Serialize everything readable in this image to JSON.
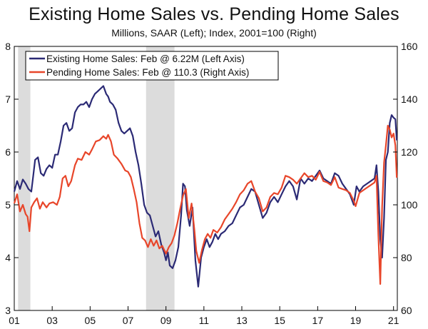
{
  "chart_data": {
    "type": "line",
    "title": "Existing Home Sales vs. Pending Home Sales",
    "subtitle": "Millions, SAAR (Left); Index, 2001=100 (Right)",
    "x_ticks": [
      "01",
      "03",
      "05",
      "07",
      "09",
      "11",
      "13",
      "15",
      "17",
      "19",
      "21"
    ],
    "x_range": [
      2001.0,
      2021.2
    ],
    "y_left": {
      "range": [
        3,
        8
      ],
      "ticks": [
        3,
        4,
        5,
        6,
        7,
        8
      ]
    },
    "y_right": {
      "range": [
        60,
        160
      ],
      "ticks": [
        60,
        80,
        100,
        120,
        140,
        160
      ]
    },
    "recessions": [
      [
        2001.2,
        2001.85
      ],
      [
        2007.95,
        2009.45
      ]
    ],
    "recession_color": "#dcdcdc",
    "grid": false,
    "legend_position": "top-left",
    "series": [
      {
        "name": "Existing Home Sales: Feb @ 6.22M (Left Axis)",
        "axis": "left",
        "color": "#2b2a75",
        "points": [
          [
            2001.0,
            5.25
          ],
          [
            2001.15,
            5.45
          ],
          [
            2001.3,
            5.3
          ],
          [
            2001.45,
            5.48
          ],
          [
            2001.6,
            5.4
          ],
          [
            2001.75,
            5.3
          ],
          [
            2001.9,
            5.25
          ],
          [
            2002.0,
            5.55
          ],
          [
            2002.1,
            5.85
          ],
          [
            2002.25,
            5.9
          ],
          [
            2002.4,
            5.6
          ],
          [
            2002.55,
            5.55
          ],
          [
            2002.7,
            5.68
          ],
          [
            2002.85,
            5.75
          ],
          [
            2003.0,
            5.7
          ],
          [
            2003.15,
            5.95
          ],
          [
            2003.3,
            5.95
          ],
          [
            2003.45,
            6.2
          ],
          [
            2003.6,
            6.5
          ],
          [
            2003.75,
            6.55
          ],
          [
            2003.9,
            6.4
          ],
          [
            2004.05,
            6.45
          ],
          [
            2004.2,
            6.75
          ],
          [
            2004.35,
            6.85
          ],
          [
            2004.5,
            6.9
          ],
          [
            2004.65,
            6.9
          ],
          [
            2004.8,
            6.95
          ],
          [
            2004.95,
            6.85
          ],
          [
            2005.1,
            7.0
          ],
          [
            2005.25,
            7.1
          ],
          [
            2005.4,
            7.15
          ],
          [
            2005.55,
            7.2
          ],
          [
            2005.7,
            7.25
          ],
          [
            2005.85,
            7.1
          ],
          [
            2005.95,
            7.05
          ],
          [
            2006.05,
            6.95
          ],
          [
            2006.2,
            6.9
          ],
          [
            2006.35,
            6.8
          ],
          [
            2006.5,
            6.55
          ],
          [
            2006.65,
            6.4
          ],
          [
            2006.8,
            6.35
          ],
          [
            2006.95,
            6.4
          ],
          [
            2007.1,
            6.45
          ],
          [
            2007.25,
            6.3
          ],
          [
            2007.4,
            6.0
          ],
          [
            2007.55,
            5.75
          ],
          [
            2007.7,
            5.4
          ],
          [
            2007.85,
            5.0
          ],
          [
            2008.0,
            4.85
          ],
          [
            2008.15,
            4.8
          ],
          [
            2008.3,
            4.6
          ],
          [
            2008.45,
            4.4
          ],
          [
            2008.6,
            4.5
          ],
          [
            2008.75,
            4.25
          ],
          [
            2008.9,
            4.1
          ],
          [
            2009.0,
            3.95
          ],
          [
            2009.1,
            4.1
          ],
          [
            2009.2,
            3.85
          ],
          [
            2009.35,
            3.8
          ],
          [
            2009.5,
            3.95
          ],
          [
            2009.65,
            4.2
          ],
          [
            2009.8,
            4.8
          ],
          [
            2009.9,
            5.4
          ],
          [
            2010.0,
            5.35
          ],
          [
            2010.1,
            4.9
          ],
          [
            2010.25,
            4.6
          ],
          [
            2010.4,
            4.95
          ],
          [
            2010.55,
            3.95
          ],
          [
            2010.7,
            3.45
          ],
          [
            2010.85,
            4.0
          ],
          [
            2011.0,
            4.2
          ],
          [
            2011.15,
            4.35
          ],
          [
            2011.3,
            4.2
          ],
          [
            2011.45,
            4.3
          ],
          [
            2011.6,
            4.45
          ],
          [
            2011.75,
            4.35
          ],
          [
            2011.9,
            4.45
          ],
          [
            2012.1,
            4.5
          ],
          [
            2012.3,
            4.6
          ],
          [
            2012.5,
            4.65
          ],
          [
            2012.7,
            4.8
          ],
          [
            2012.9,
            4.95
          ],
          [
            2013.1,
            5.0
          ],
          [
            2013.3,
            5.15
          ],
          [
            2013.5,
            5.3
          ],
          [
            2013.7,
            5.25
          ],
          [
            2013.9,
            5.0
          ],
          [
            2014.1,
            4.75
          ],
          [
            2014.3,
            4.85
          ],
          [
            2014.5,
            5.05
          ],
          [
            2014.7,
            5.15
          ],
          [
            2014.9,
            5.05
          ],
          [
            2015.1,
            5.2
          ],
          [
            2015.3,
            5.35
          ],
          [
            2015.5,
            5.45
          ],
          [
            2015.7,
            5.35
          ],
          [
            2015.9,
            5.1
          ],
          [
            2016.1,
            5.5
          ],
          [
            2016.3,
            5.4
          ],
          [
            2016.5,
            5.5
          ],
          [
            2016.7,
            5.45
          ],
          [
            2016.9,
            5.55
          ],
          [
            2017.1,
            5.65
          ],
          [
            2017.3,
            5.5
          ],
          [
            2017.5,
            5.45
          ],
          [
            2017.7,
            5.4
          ],
          [
            2017.9,
            5.6
          ],
          [
            2018.1,
            5.55
          ],
          [
            2018.3,
            5.4
          ],
          [
            2018.5,
            5.3
          ],
          [
            2018.7,
            5.2
          ],
          [
            2018.9,
            5.0
          ],
          [
            2019.05,
            5.35
          ],
          [
            2019.2,
            5.25
          ],
          [
            2019.4,
            5.35
          ],
          [
            2019.6,
            5.4
          ],
          [
            2019.8,
            5.45
          ],
          [
            2020.0,
            5.5
          ],
          [
            2020.1,
            5.75
          ],
          [
            2020.2,
            5.25
          ],
          [
            2020.3,
            4.35
          ],
          [
            2020.4,
            4.0
          ],
          [
            2020.5,
            4.75
          ],
          [
            2020.6,
            5.85
          ],
          [
            2020.7,
            6.0
          ],
          [
            2020.8,
            6.55
          ],
          [
            2020.9,
            6.7
          ],
          [
            2021.0,
            6.65
          ],
          [
            2021.1,
            6.62
          ],
          [
            2021.17,
            6.22
          ]
        ]
      },
      {
        "name": "Pending Home Sales: Feb @ 110.3 (Right Axis)",
        "axis": "right",
        "color": "#e8462a",
        "points": [
          [
            2001.0,
            100.5
          ],
          [
            2001.15,
            104.0
          ],
          [
            2001.3,
            97.5
          ],
          [
            2001.45,
            100.0
          ],
          [
            2001.6,
            96.5
          ],
          [
            2001.7,
            95.5
          ],
          [
            2001.8,
            90.0
          ],
          [
            2001.9,
            99.0
          ],
          [
            2002.05,
            101.0
          ],
          [
            2002.2,
            102.5
          ],
          [
            2002.35,
            98.5
          ],
          [
            2002.5,
            101.0
          ],
          [
            2002.7,
            99.0
          ],
          [
            2002.85,
            100.5
          ],
          [
            2003.05,
            101.0
          ],
          [
            2003.25,
            100.0
          ],
          [
            2003.4,
            103.0
          ],
          [
            2003.55,
            110.0
          ],
          [
            2003.7,
            111.0
          ],
          [
            2003.85,
            107.0
          ],
          [
            2004.0,
            109.0
          ],
          [
            2004.2,
            115.0
          ],
          [
            2004.35,
            117.5
          ],
          [
            2004.55,
            117.0
          ],
          [
            2004.75,
            120.0
          ],
          [
            2004.95,
            119.0
          ],
          [
            2005.1,
            121.0
          ],
          [
            2005.3,
            124.0
          ],
          [
            2005.5,
            124.5
          ],
          [
            2005.7,
            126.0
          ],
          [
            2005.85,
            125.0
          ],
          [
            2005.95,
            126.5
          ],
          [
            2006.1,
            124.0
          ],
          [
            2006.25,
            119.0
          ],
          [
            2006.45,
            117.5
          ],
          [
            2006.65,
            115.5
          ],
          [
            2006.85,
            113.0
          ],
          [
            2007.0,
            112.5
          ],
          [
            2007.15,
            110.5
          ],
          [
            2007.3,
            106.0
          ],
          [
            2007.45,
            101.0
          ],
          [
            2007.6,
            93.0
          ],
          [
            2007.75,
            87.5
          ],
          [
            2007.9,
            86.5
          ],
          [
            2008.05,
            84.0
          ],
          [
            2008.2,
            87.0
          ],
          [
            2008.35,
            84.5
          ],
          [
            2008.5,
            86.5
          ],
          [
            2008.65,
            83.5
          ],
          [
            2008.8,
            84.5
          ],
          [
            2009.0,
            81.5
          ],
          [
            2009.15,
            84.0
          ],
          [
            2009.3,
            85.5
          ],
          [
            2009.45,
            88.5
          ],
          [
            2009.6,
            93.0
          ],
          [
            2009.75,
            98.5
          ],
          [
            2009.9,
            103.5
          ],
          [
            2010.05,
            106.0
          ],
          [
            2010.2,
            95.0
          ],
          [
            2010.35,
            100.5
          ],
          [
            2010.5,
            90.5
          ],
          [
            2010.6,
            82.5
          ],
          [
            2010.75,
            78.0
          ],
          [
            2010.9,
            83.0
          ],
          [
            2011.05,
            87.0
          ],
          [
            2011.2,
            89.0
          ],
          [
            2011.35,
            87.5
          ],
          [
            2011.5,
            90.5
          ],
          [
            2011.7,
            89.5
          ],
          [
            2011.9,
            91.5
          ],
          [
            2012.1,
            94.5
          ],
          [
            2012.3,
            96.5
          ],
          [
            2012.5,
            98.5
          ],
          [
            2012.7,
            101.0
          ],
          [
            2012.9,
            104.0
          ],
          [
            2013.1,
            105.5
          ],
          [
            2013.3,
            108.0
          ],
          [
            2013.5,
            109.0
          ],
          [
            2013.7,
            105.0
          ],
          [
            2013.9,
            102.5
          ],
          [
            2014.1,
            97.5
          ],
          [
            2014.3,
            99.0
          ],
          [
            2014.5,
            103.0
          ],
          [
            2014.7,
            104.5
          ],
          [
            2014.9,
            104.0
          ],
          [
            2015.1,
            106.5
          ],
          [
            2015.3,
            111.0
          ],
          [
            2015.5,
            110.5
          ],
          [
            2015.7,
            109.5
          ],
          [
            2015.9,
            108.0
          ],
          [
            2016.1,
            110.0
          ],
          [
            2016.3,
            112.0
          ],
          [
            2016.5,
            110.5
          ],
          [
            2016.7,
            111.0
          ],
          [
            2016.9,
            109.5
          ],
          [
            2017.1,
            112.5
          ],
          [
            2017.3,
            109.0
          ],
          [
            2017.5,
            108.5
          ],
          [
            2017.7,
            107.5
          ],
          [
            2017.9,
            110.5
          ],
          [
            2018.1,
            106.5
          ],
          [
            2018.3,
            106.0
          ],
          [
            2018.5,
            105.5
          ],
          [
            2018.7,
            104.5
          ],
          [
            2018.9,
            101.5
          ],
          [
            2019.0,
            99.5
          ],
          [
            2019.2,
            104.5
          ],
          [
            2019.4,
            105.5
          ],
          [
            2019.6,
            106.5
          ],
          [
            2019.8,
            107.5
          ],
          [
            2020.0,
            108.5
          ],
          [
            2020.1,
            111.0
          ],
          [
            2020.2,
            88.5
          ],
          [
            2020.3,
            70.0
          ],
          [
            2020.4,
            99.5
          ],
          [
            2020.5,
            116.0
          ],
          [
            2020.6,
            122.5
          ],
          [
            2020.7,
            130.0
          ],
          [
            2020.8,
            128.5
          ],
          [
            2020.9,
            125.5
          ],
          [
            2021.0,
            127.0
          ],
          [
            2021.1,
            122.5
          ],
          [
            2021.17,
            110.3
          ]
        ]
      }
    ]
  }
}
